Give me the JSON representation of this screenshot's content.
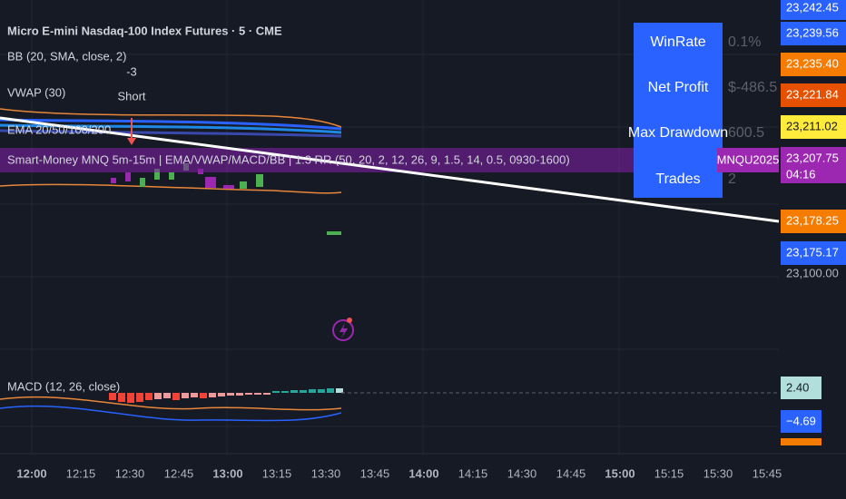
{
  "header": {
    "title": "Micro E-mini Nasdaq-100 Index Futures · 5 · CME"
  },
  "indicators": [
    "BB (20, SMA, close, 2)",
    "VWAP (30)",
    "EMA 20/50/100/200",
    "Smart-Money MNQ 5m-15m | EMA/VWAP/MACD/BB | 1:3 RR (50, 20, 2, 12, 26, 9, 1.5, 14, 0.5, 0930-1600)",
    "MACD (12, 26, close)"
  ],
  "signal": {
    "value": "-3",
    "label": "Short"
  },
  "stats": [
    {
      "label": "WinRate",
      "value": "0.1%"
    },
    {
      "label": "Net Profit",
      "value": "$-486.5"
    },
    {
      "label": "Max Drawdown",
      "value": "600.5"
    },
    {
      "label": "Trades",
      "value": "2"
    }
  ],
  "symbol_label": "MNQU2025",
  "countdown": "04:16",
  "price_labels": [
    "23,242.45",
    "23,239.56",
    "23,235.40",
    "23,221.84",
    "23,211.02",
    "23,207.75",
    "23,178.25",
    "23,175.17",
    "23,100.00"
  ],
  "macd_labels": [
    "2.40",
    "−4.69"
  ],
  "time_axis": [
    "12:00",
    "12:15",
    "12:30",
    "12:45",
    "13:00",
    "13:15",
    "13:30",
    "13:45",
    "14:00",
    "14:15",
    "14:30",
    "14:45",
    "15:00",
    "15:15",
    "15:30",
    "15:45"
  ]
}
